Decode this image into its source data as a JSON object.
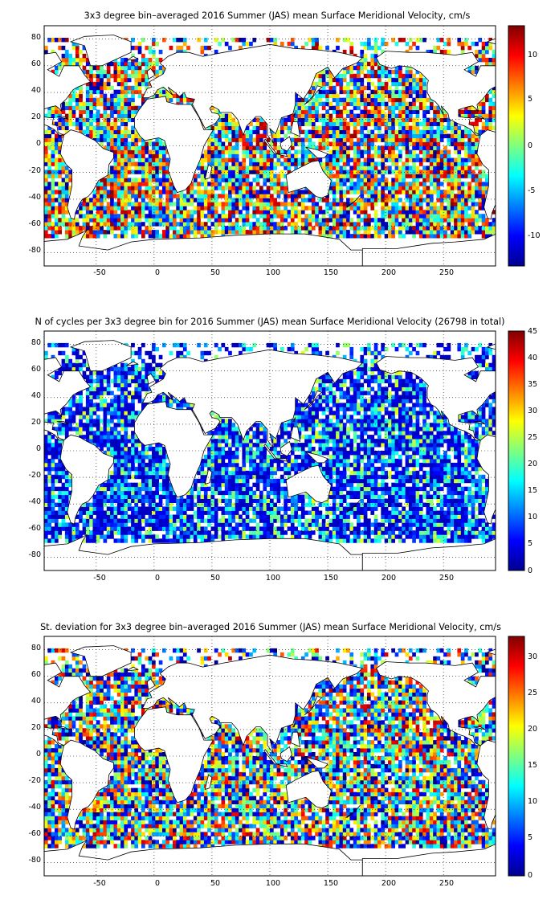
{
  "chart_data": [
    {
      "type": "heatmap",
      "title": "3x3 degree bin–averaged 2016 Summer (JAS) mean Surface Meridional Velocity, cm/s",
      "x_ticks": [
        "-50",
        "0",
        "50",
        "100",
        "150",
        "200",
        "250"
      ],
      "y_ticks": [
        "80",
        "60",
        "40",
        "20",
        "0",
        "-20",
        "-40",
        "-60",
        "-80"
      ],
      "xlim": [
        -95,
        295
      ],
      "ylim": [
        -90,
        90
      ],
      "colorbar": {
        "ticks": [
          "10",
          "5",
          "0",
          "-5",
          "-10"
        ],
        "range": [
          -13,
          13
        ]
      }
    },
    {
      "type": "heatmap",
      "title": "N of cycles per 3x3 degree bin for 2016 Summer (JAS) mean Surface Meridional Velocity (26798 in total)",
      "x_ticks": [
        "-50",
        "0",
        "50",
        "100",
        "150",
        "200",
        "250"
      ],
      "y_ticks": [
        "80",
        "60",
        "40",
        "20",
        "0",
        "-20",
        "-40",
        "-60",
        "-80"
      ],
      "xlim": [
        -95,
        295
      ],
      "ylim": [
        -90,
        90
      ],
      "colorbar": {
        "ticks": [
          "45",
          "40",
          "35",
          "30",
          "25",
          "20",
          "15",
          "10",
          "5",
          "0"
        ],
        "range": [
          0,
          45
        ]
      }
    },
    {
      "type": "heatmap",
      "title": "St. deviation for 3x3 degree bin–averaged 2016 Summer (JAS) mean Surface Meridional Velocity, cm/s",
      "x_ticks": [
        "-50",
        "0",
        "50",
        "100",
        "150",
        "200",
        "250"
      ],
      "y_ticks": [
        "80",
        "60",
        "40",
        "20",
        "0",
        "-20",
        "-40",
        "-60",
        "-80"
      ],
      "xlim": [
        -95,
        295
      ],
      "ylim": [
        -90,
        90
      ],
      "colorbar": {
        "ticks": [
          "30",
          "25",
          "20",
          "15",
          "10",
          "5",
          "0"
        ],
        "range": [
          0,
          33
        ]
      }
    }
  ]
}
